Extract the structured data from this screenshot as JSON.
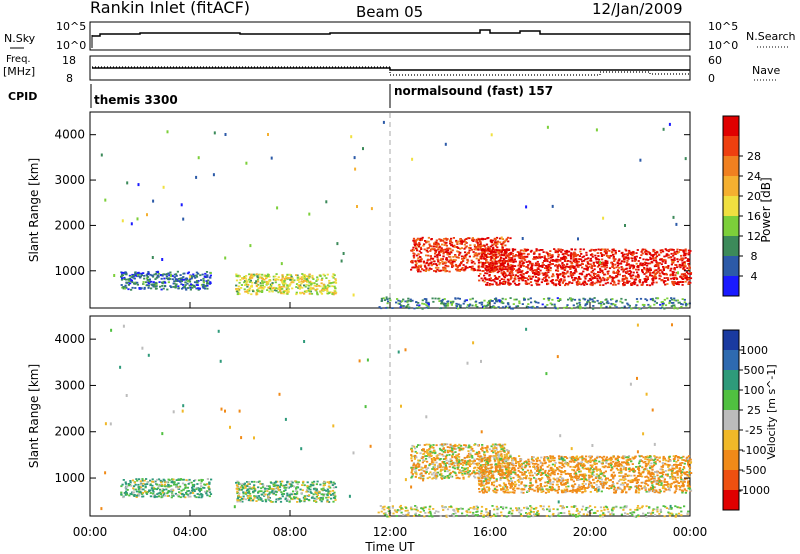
{
  "header": {
    "title": "Rankin Inlet (fitACF)",
    "beam": "Beam 05",
    "date": "12/Jan/2009"
  },
  "top_panels": {
    "nsky_label": "N.Sky",
    "nsky_ticks": [
      "10^5",
      "10^0"
    ],
    "nsearch_label": "N.Search",
    "nsearch_ticks": [
      "10^5",
      "10^0"
    ],
    "freq_label_1": "Freq.",
    "freq_label_2": "[MHz]",
    "freq_ticks": [
      "18",
      "8"
    ],
    "nave_label": "Nave",
    "nave_ticks": [
      "60",
      "0"
    ],
    "cpid_label": "CPID",
    "cpid_1": "themis 3300",
    "cpid_2": "normalsound (fast) 157"
  },
  "axes": {
    "xlabel": "Time UT",
    "xticks": [
      "00:00",
      "04:00",
      "08:00",
      "12:00",
      "16:00",
      "20:00",
      "00:00"
    ],
    "ylabel": "Slant Range [km]",
    "yticks": [
      "1000",
      "2000",
      "3000",
      "4000"
    ]
  },
  "colorbars": {
    "power": {
      "label": "Power [dB]",
      "ticks": [
        "4",
        "8",
        "12",
        "16",
        "20",
        "24",
        "28"
      ],
      "colors": [
        "#1a1aff",
        "#2c5aa8",
        "#3c8a5a",
        "#7ccf3a",
        "#f0e040",
        "#f5b030",
        "#f08020",
        "#ee4010",
        "#e00000"
      ]
    },
    "velocity": {
      "label": "Velocity [m s^-1]",
      "ticks": [
        "1000",
        "500",
        "100",
        "25",
        "-25",
        "-100",
        "-500",
        "-1000"
      ],
      "colors": [
        "#1a3aa0",
        "#2e6ab0",
        "#2e9a7a",
        "#50c040",
        "#bcbcbc",
        "#f0b828",
        "#f08a18",
        "#ee5010",
        "#e00000"
      ]
    }
  },
  "chart_data": [
    {
      "type": "heatmap",
      "name": "Power",
      "x_range_hours": [
        0,
        24
      ],
      "ylim_km": [
        180,
        4500
      ],
      "colorbar_range_db": [
        0,
        30
      ],
      "regions": [
        {
          "t0": 1.2,
          "t1": 4.8,
          "r0": 600,
          "r1": 1000,
          "value_db": 6
        },
        {
          "t0": 5.8,
          "t1": 9.8,
          "r0": 500,
          "r1": 950,
          "value_db": 14
        },
        {
          "t0": 12.8,
          "t1": 16.8,
          "r0": 1000,
          "r1": 1750,
          "value_db": 26
        },
        {
          "t0": 15.5,
          "t1": 24.0,
          "r0": 700,
          "r1": 1500,
          "value_db": 28
        },
        {
          "t0": 11.5,
          "t1": 24.0,
          "r0": 180,
          "r1": 420,
          "value_db": 8
        }
      ]
    },
    {
      "type": "heatmap",
      "name": "Velocity",
      "x_range_hours": [
        0,
        24
      ],
      "ylim_km": [
        180,
        4500
      ],
      "colorbar_range_ms": [
        -1000,
        1000
      ],
      "regions": [
        {
          "t0": 1.2,
          "t1": 4.8,
          "r0": 600,
          "r1": 1000,
          "value_ms": 80
        },
        {
          "t0": 5.8,
          "t1": 9.8,
          "r0": 500,
          "r1": 950,
          "value_ms": 60
        },
        {
          "t0": 12.8,
          "t1": 16.8,
          "r0": 1000,
          "r1": 1750,
          "value_ms": -60
        },
        {
          "t0": 15.5,
          "t1": 24.0,
          "r0": 700,
          "r1": 1500,
          "value_ms": -150
        },
        {
          "t0": 11.5,
          "t1": 24.0,
          "r0": 180,
          "r1": 420,
          "value_ms": 0
        }
      ]
    }
  ]
}
